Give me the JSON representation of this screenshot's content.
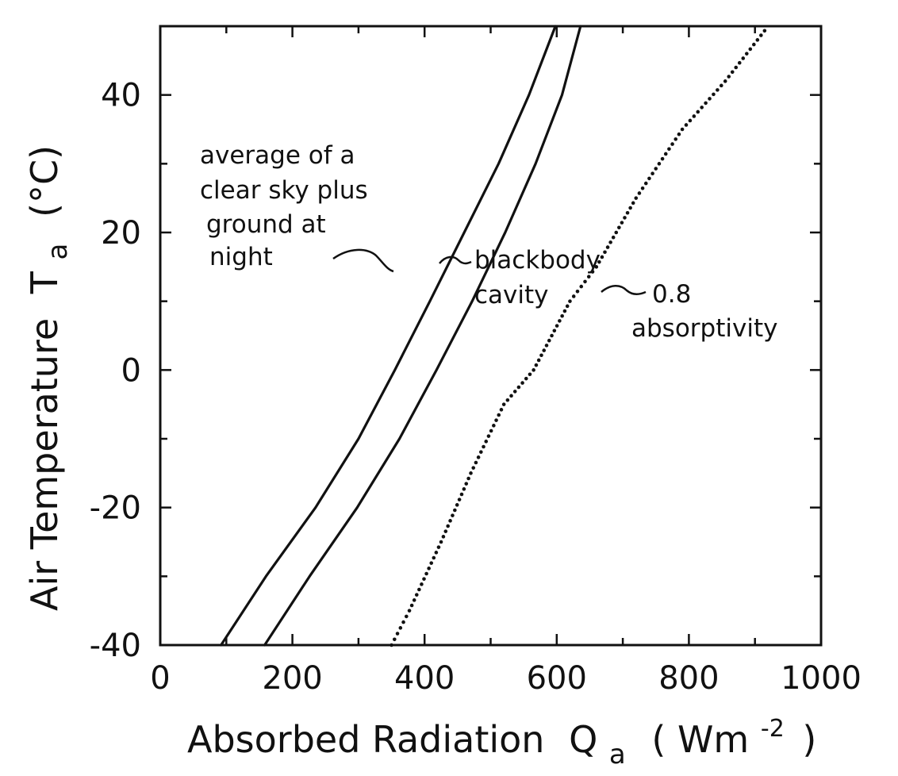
{
  "chart_data": {
    "type": "line",
    "xlabel": "Absorbed Radiation",
    "xlabel_symbol": "Q",
    "xlabel_subscript": "a",
    "xlabel_units": "( Wm",
    "xlabel_units_exp": "-2",
    "xlabel_units_close": ")",
    "ylabel": "Air Temperature",
    "ylabel_symbol": "T",
    "ylabel_subscript": "a",
    "ylabel_units": "(°C)",
    "xlim": [
      0,
      1000
    ],
    "ylim": [
      -40,
      50
    ],
    "x_ticks": [
      0,
      200,
      400,
      600,
      800,
      1000
    ],
    "y_ticks": [
      -40,
      -20,
      0,
      20,
      40
    ],
    "x_tick_labels": [
      "0",
      "200",
      "400",
      "600",
      "800",
      "1000"
    ],
    "y_tick_labels": [
      "-40",
      "-20",
      "0",
      "20",
      "40"
    ],
    "grid": false,
    "series": [
      {
        "name": "average of a clear sky plus ground at night",
        "style": "solid",
        "x": [
          92,
          160,
          235,
          300,
          355,
          408,
          460,
          512,
          558,
          598
        ],
        "y": [
          -40,
          -30,
          -20,
          -10,
          0,
          10,
          20,
          30,
          40,
          50
        ]
      },
      {
        "name": "blackbody cavity",
        "style": "solid",
        "x": [
          158,
          226,
          298,
          362,
          418,
          472,
          522,
          568,
          608,
          636
        ],
        "y": [
          -40,
          -30,
          -20,
          -10,
          0,
          10,
          20,
          30,
          40,
          50
        ]
      },
      {
        "name": "0.8 absorptivity",
        "style": "dotted",
        "x": [
          350,
          377,
          425,
          470,
          520,
          565,
          620,
          660,
          720,
          790,
          855,
          920
        ],
        "y": [
          -40,
          -35,
          -25,
          -15,
          -5,
          0,
          10,
          15,
          25,
          35,
          42,
          50
        ]
      }
    ],
    "annotations": {
      "avg_lines": [
        "average of a",
        "clear sky plus",
        "ground at",
        "night"
      ],
      "blackbody_lines": [
        "blackbody",
        "cavity"
      ],
      "absorptivity_lines": [
        "0.8",
        "absorptivity"
      ]
    }
  }
}
